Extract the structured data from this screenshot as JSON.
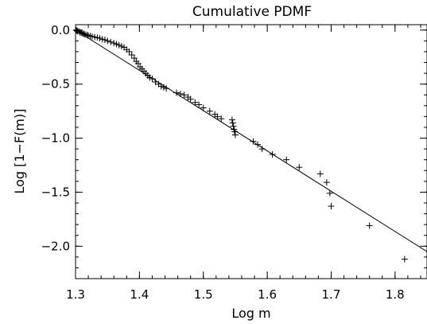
{
  "chart_data": {
    "type": "scatter",
    "title": "Cumulative PDMF",
    "xlabel": "Log m",
    "ylabel": "Log [1−F(m)]",
    "xlim": [
      1.3,
      1.85
    ],
    "ylim": [
      -2.3,
      0.05
    ],
    "grid": false,
    "legend": "none",
    "x_ticks": [
      1.3,
      1.4,
      1.5,
      1.6,
      1.7,
      1.8
    ],
    "x_tick_labels": [
      "1.3",
      "1.4",
      "1.5",
      "1.6",
      "1.7",
      "1.8"
    ],
    "y_ticks": [
      0.0,
      -0.5,
      -1.0,
      -1.5,
      -2.0
    ],
    "y_tick_labels": [
      "0.0",
      "−0.5",
      "−1.0",
      "−1.5",
      "−2.0"
    ],
    "marker": "+",
    "series": [
      {
        "points": [
          [
            1.301,
            0.0
          ],
          [
            1.302,
            -0.005
          ],
          [
            1.303,
            -0.01
          ],
          [
            1.305,
            -0.012
          ],
          [
            1.307,
            -0.02
          ],
          [
            1.309,
            -0.025
          ],
          [
            1.311,
            -0.03
          ],
          [
            1.313,
            -0.035
          ],
          [
            1.315,
            -0.04
          ],
          [
            1.318,
            -0.045
          ],
          [
            1.32,
            -0.05
          ],
          [
            1.323,
            -0.055
          ],
          [
            1.326,
            -0.06
          ],
          [
            1.33,
            -0.065
          ],
          [
            1.334,
            -0.07
          ],
          [
            1.338,
            -0.075
          ],
          [
            1.342,
            -0.085
          ],
          [
            1.346,
            -0.09
          ],
          [
            1.35,
            -0.1
          ],
          [
            1.355,
            -0.11
          ],
          [
            1.36,
            -0.12
          ],
          [
            1.364,
            -0.13
          ],
          [
            1.368,
            -0.14
          ],
          [
            1.372,
            -0.15
          ],
          [
            1.376,
            -0.16
          ],
          [
            1.38,
            -0.18
          ],
          [
            1.384,
            -0.2
          ],
          [
            1.388,
            -0.23
          ],
          [
            1.392,
            -0.26
          ],
          [
            1.395,
            -0.29
          ],
          [
            1.398,
            -0.31
          ],
          [
            1.401,
            -0.34
          ],
          [
            1.404,
            -0.36
          ],
          [
            1.407,
            -0.38
          ],
          [
            1.41,
            -0.4
          ],
          [
            1.413,
            -0.42
          ],
          [
            1.416,
            -0.44
          ],
          [
            1.42,
            -0.45
          ],
          [
            1.425,
            -0.48
          ],
          [
            1.43,
            -0.5
          ],
          [
            1.434,
            -0.52
          ],
          [
            1.438,
            -0.53
          ],
          [
            1.442,
            -0.54
          ],
          [
            1.458,
            -0.58
          ],
          [
            1.464,
            -0.59
          ],
          [
            1.47,
            -0.6
          ],
          [
            1.476,
            -0.62
          ],
          [
            1.48,
            -0.64
          ],
          [
            1.487,
            -0.67
          ],
          [
            1.493,
            -0.69
          ],
          [
            1.5,
            -0.72
          ],
          [
            1.51,
            -0.75
          ],
          [
            1.518,
            -0.78
          ],
          [
            1.522,
            -0.8
          ],
          [
            1.528,
            -0.82
          ],
          [
            1.545,
            -0.83
          ],
          [
            1.546,
            -0.86
          ],
          [
            1.547,
            -0.89
          ],
          [
            1.548,
            -0.92
          ],
          [
            1.549,
            -0.94
          ],
          [
            1.55,
            -0.97
          ],
          [
            1.578,
            -1.03
          ],
          [
            1.585,
            -1.06
          ],
          [
            1.592,
            -1.1
          ],
          [
            1.608,
            -1.15
          ],
          [
            1.63,
            -1.2
          ],
          [
            1.65,
            -1.27
          ],
          [
            1.683,
            -1.33
          ],
          [
            1.693,
            -1.41
          ],
          [
            1.698,
            -1.51
          ],
          [
            1.7,
            -1.63
          ],
          [
            1.76,
            -1.81
          ],
          [
            1.815,
            -2.12
          ]
        ]
      },
      {
        "type": "line",
        "points": [
          [
            1.3,
            0.0
          ],
          [
            1.85,
            -2.05
          ]
        ]
      }
    ]
  }
}
